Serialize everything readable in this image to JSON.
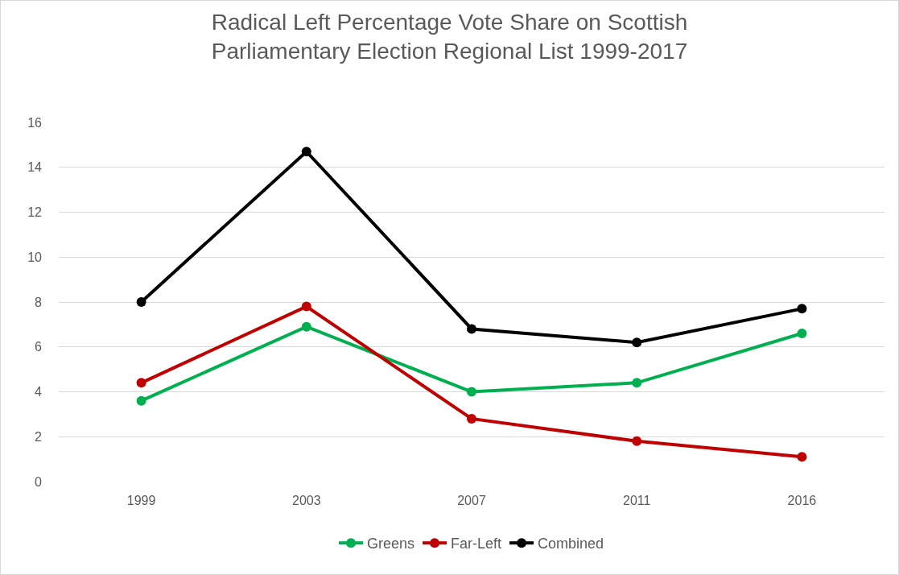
{
  "chart_data": {
    "type": "line",
    "title": "Radical Left Percentage Vote Share on Scottish Parliamentary Election Regional List 1999-2017",
    "categories": [
      "1999",
      "2003",
      "2007",
      "2011",
      "2016"
    ],
    "series": [
      {
        "name": "Greens",
        "color": "#00b050",
        "values": [
          3.6,
          6.9,
          4.0,
          4.4,
          6.6
        ]
      },
      {
        "name": "Far-Left",
        "color": "#c00000",
        "values": [
          4.4,
          7.8,
          2.8,
          1.8,
          1.1
        ]
      },
      {
        "name": "Combined",
        "color": "#000000",
        "values": [
          8.0,
          14.7,
          6.8,
          6.2,
          7.7
        ]
      }
    ],
    "ylim": [
      0,
      16
    ],
    "yticks": [
      0,
      2,
      4,
      6,
      8,
      10,
      12,
      14,
      16
    ],
    "grid": "y",
    "legend": "bottom",
    "marker": "circle",
    "line_style": "solid"
  }
}
